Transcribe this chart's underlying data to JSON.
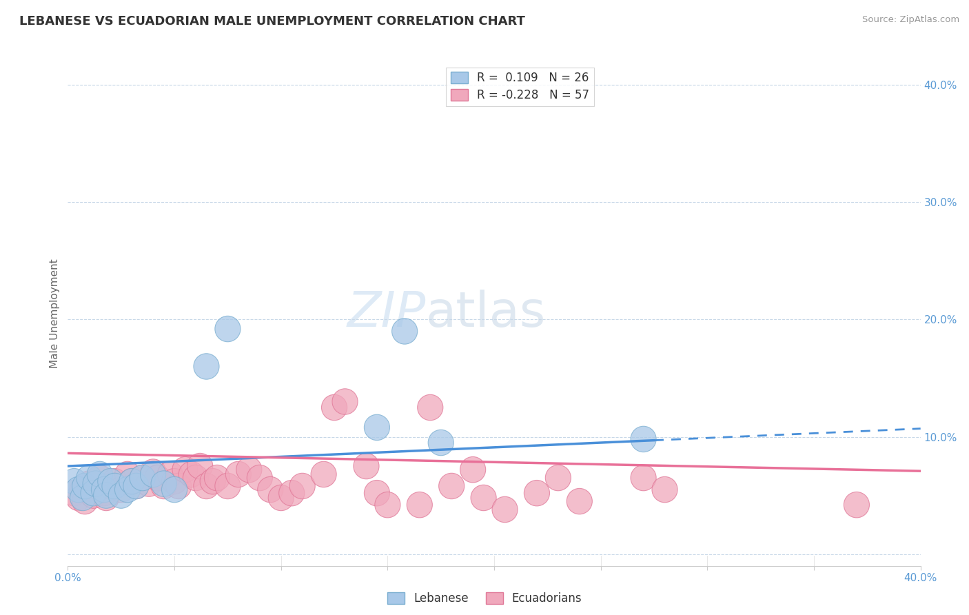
{
  "title": "LEBANESE VS ECUADORIAN MALE UNEMPLOYMENT CORRELATION CHART",
  "source": "Source: ZipAtlas.com",
  "ylabel": "Male Unemployment",
  "xlim": [
    0.0,
    0.4
  ],
  "ylim": [
    -0.01,
    0.42
  ],
  "legend_r_lebanese": "0.109",
  "legend_n_lebanese": "26",
  "legend_r_ecuadorian": "-0.228",
  "legend_n_ecuadorian": "57",
  "blue_scatter": "#a8c8e8",
  "pink_scatter": "#f0a8bc",
  "blue_edge": "#7aaed0",
  "pink_edge": "#e07898",
  "blue_line": "#4a90d9",
  "pink_line": "#e87098",
  "watermark_color": "#d8eaf8",
  "lebanese_points": [
    [
      0.003,
      0.062
    ],
    [
      0.005,
      0.055
    ],
    [
      0.007,
      0.048
    ],
    [
      0.008,
      0.058
    ],
    [
      0.01,
      0.065
    ],
    [
      0.012,
      0.052
    ],
    [
      0.013,
      0.06
    ],
    [
      0.015,
      0.068
    ],
    [
      0.017,
      0.055
    ],
    [
      0.018,
      0.05
    ],
    [
      0.02,
      0.062
    ],
    [
      0.022,
      0.058
    ],
    [
      0.025,
      0.05
    ],
    [
      0.028,
      0.055
    ],
    [
      0.03,
      0.062
    ],
    [
      0.032,
      0.058
    ],
    [
      0.035,
      0.065
    ],
    [
      0.04,
      0.068
    ],
    [
      0.045,
      0.06
    ],
    [
      0.05,
      0.055
    ],
    [
      0.065,
      0.16
    ],
    [
      0.075,
      0.192
    ],
    [
      0.145,
      0.108
    ],
    [
      0.175,
      0.095
    ],
    [
      0.27,
      0.098
    ],
    [
      0.158,
      0.19
    ]
  ],
  "ecuadorian_points": [
    [
      0.003,
      0.052
    ],
    [
      0.005,
      0.048
    ],
    [
      0.007,
      0.055
    ],
    [
      0.008,
      0.045
    ],
    [
      0.01,
      0.06
    ],
    [
      0.012,
      0.05
    ],
    [
      0.013,
      0.058
    ],
    [
      0.015,
      0.065
    ],
    [
      0.017,
      0.052
    ],
    [
      0.018,
      0.048
    ],
    [
      0.02,
      0.058
    ],
    [
      0.022,
      0.062
    ],
    [
      0.025,
      0.055
    ],
    [
      0.028,
      0.068
    ],
    [
      0.03,
      0.062
    ],
    [
      0.032,
      0.058
    ],
    [
      0.035,
      0.065
    ],
    [
      0.038,
      0.06
    ],
    [
      0.04,
      0.07
    ],
    [
      0.042,
      0.065
    ],
    [
      0.045,
      0.058
    ],
    [
      0.048,
      0.068
    ],
    [
      0.05,
      0.062
    ],
    [
      0.052,
      0.058
    ],
    [
      0.055,
      0.072
    ],
    [
      0.058,
      0.068
    ],
    [
      0.06,
      0.065
    ],
    [
      0.062,
      0.075
    ],
    [
      0.065,
      0.058
    ],
    [
      0.068,
      0.062
    ],
    [
      0.07,
      0.065
    ],
    [
      0.075,
      0.058
    ],
    [
      0.08,
      0.068
    ],
    [
      0.085,
      0.072
    ],
    [
      0.09,
      0.065
    ],
    [
      0.095,
      0.055
    ],
    [
      0.1,
      0.048
    ],
    [
      0.105,
      0.052
    ],
    [
      0.11,
      0.058
    ],
    [
      0.12,
      0.068
    ],
    [
      0.125,
      0.125
    ],
    [
      0.13,
      0.13
    ],
    [
      0.14,
      0.075
    ],
    [
      0.145,
      0.052
    ],
    [
      0.15,
      0.042
    ],
    [
      0.165,
      0.042
    ],
    [
      0.17,
      0.125
    ],
    [
      0.18,
      0.058
    ],
    [
      0.19,
      0.072
    ],
    [
      0.195,
      0.048
    ],
    [
      0.205,
      0.038
    ],
    [
      0.22,
      0.052
    ],
    [
      0.23,
      0.065
    ],
    [
      0.24,
      0.045
    ],
    [
      0.27,
      0.065
    ],
    [
      0.28,
      0.055
    ],
    [
      0.37,
      0.042
    ]
  ]
}
